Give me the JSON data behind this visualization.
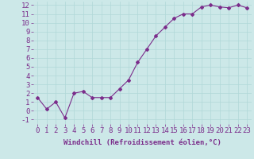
{
  "x": [
    0,
    1,
    2,
    3,
    4,
    5,
    6,
    7,
    8,
    9,
    10,
    11,
    12,
    13,
    14,
    15,
    16,
    17,
    18,
    19,
    20,
    21,
    22,
    23
  ],
  "y": [
    1.5,
    0.2,
    1.0,
    -0.8,
    2.0,
    2.2,
    1.5,
    1.5,
    1.5,
    2.5,
    3.5,
    5.5,
    7.0,
    8.5,
    9.5,
    10.5,
    11.0,
    11.0,
    11.8,
    12.0,
    11.8,
    11.7,
    12.0,
    11.7
  ],
  "line_color": "#7b2d8b",
  "marker": "D",
  "marker_size": 2.0,
  "bg_color": "#cce8e8",
  "grid_color": "#b0d8d8",
  "xlabel": "Windchill (Refroidissement éolien,°C)",
  "ylabel_ticks": [
    -1,
    0,
    1,
    2,
    3,
    4,
    5,
    6,
    7,
    8,
    9,
    10,
    11,
    12
  ],
  "xtick_labels": [
    "0",
    "1",
    "2",
    "3",
    "4",
    "5",
    "6",
    "7",
    "8",
    "9",
    "10",
    "11",
    "12",
    "13",
    "14",
    "15",
    "16",
    "17",
    "18",
    "19",
    "20",
    "21",
    "22",
    "23"
  ],
  "ylim": [
    -1.5,
    12.4
  ],
  "xlim": [
    -0.5,
    23.5
  ],
  "xlabel_fontsize": 6.5,
  "tick_fontsize": 6.5,
  "label_color": "#7b2d8b",
  "linewidth": 0.8
}
